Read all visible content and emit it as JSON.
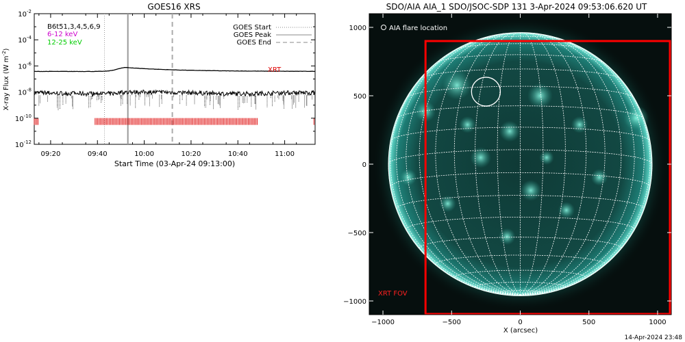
{
  "footer_timestamp": "14-Apr-2024 23:48",
  "chart_data": [
    {
      "type": "line",
      "title": "GOES16 XRS",
      "xlabel": "Start Time (03-Apr-24 09:13:00)",
      "ylabel_main": "X-ray Flux (W m",
      "ylabel_sup": "-2",
      "ylabel_tail": ")",
      "x_range_minutes": [
        13,
        133
      ],
      "x_ticks": [
        {
          "label": "09:20",
          "min": 20
        },
        {
          "label": "09:40",
          "min": 40
        },
        {
          "label": "10:00",
          "min": 60
        },
        {
          "label": "10:20",
          "min": 80
        },
        {
          "label": "10:40",
          "min": 100
        },
        {
          "label": "11:00",
          "min": 120
        }
      ],
      "ylog_range": [
        -12,
        -2
      ],
      "y_ticks": [
        {
          "base": "10",
          "exp": "-2",
          "v": -2
        },
        {
          "base": "10",
          "exp": "-4",
          "v": -4
        },
        {
          "base": "10",
          "exp": "-6",
          "v": -6
        },
        {
          "base": "10",
          "exp": "-8",
          "v": -8
        },
        {
          "base": "10",
          "exp": "-10",
          "v": -10
        },
        {
          "base": "10",
          "exp": "-12",
          "v": -12
        }
      ],
      "channels": [
        {
          "label": "B6t51,3,4,5,6,9",
          "color": "#000000"
        },
        {
          "label": "6-12 keV",
          "color": "#cc00cc"
        },
        {
          "label": "12-25 keV",
          "color": "#00cc00"
        }
      ],
      "series": [
        {
          "name": "long",
          "log10_flux_base": -6.42,
          "peak_min": 52.5,
          "peak_log10": -6.12
        },
        {
          "name": "short",
          "log10_flux_base": -8.1,
          "peak_min": 52.5,
          "peak_log10": -8.0
        }
      ],
      "markers": [
        {
          "label": "GOES Start",
          "min": 43,
          "style": "dotted"
        },
        {
          "label": "GOES Peak",
          "min": 53,
          "style": "solid"
        },
        {
          "label": "GOES End",
          "min": 72,
          "style": "dashed"
        }
      ],
      "xrt": {
        "label": "XRT",
        "color": "#dd0000",
        "log10_level": -10.25,
        "coverage_min": [
          [
            13,
            15
          ],
          [
            39,
            108.5
          ],
          [
            132.5,
            133
          ]
        ]
      }
    },
    {
      "type": "image",
      "title": "SDO/AIA AIA_1 SDO/JSOC-SDP 131  3-Apr-2024 09:53:06.620 UT",
      "xlabel": "X (arcsec)",
      "x_range": [
        -1100,
        1100
      ],
      "y_range": [
        -1100,
        1100
      ],
      "ticks": [
        -1000,
        -500,
        0,
        500,
        1000
      ],
      "solar_radius_arcsec": 960,
      "legend": "AIA flare location",
      "flare_location": {
        "x": -250,
        "y": 530,
        "r": 105
      },
      "xrt_fov": {
        "label": "XRT FOV",
        "x": [
          -690,
          1090
        ],
        "y": [
          -1095,
          900
        ],
        "color": "#ff0000"
      },
      "grid_step_deg": 10
    }
  ]
}
